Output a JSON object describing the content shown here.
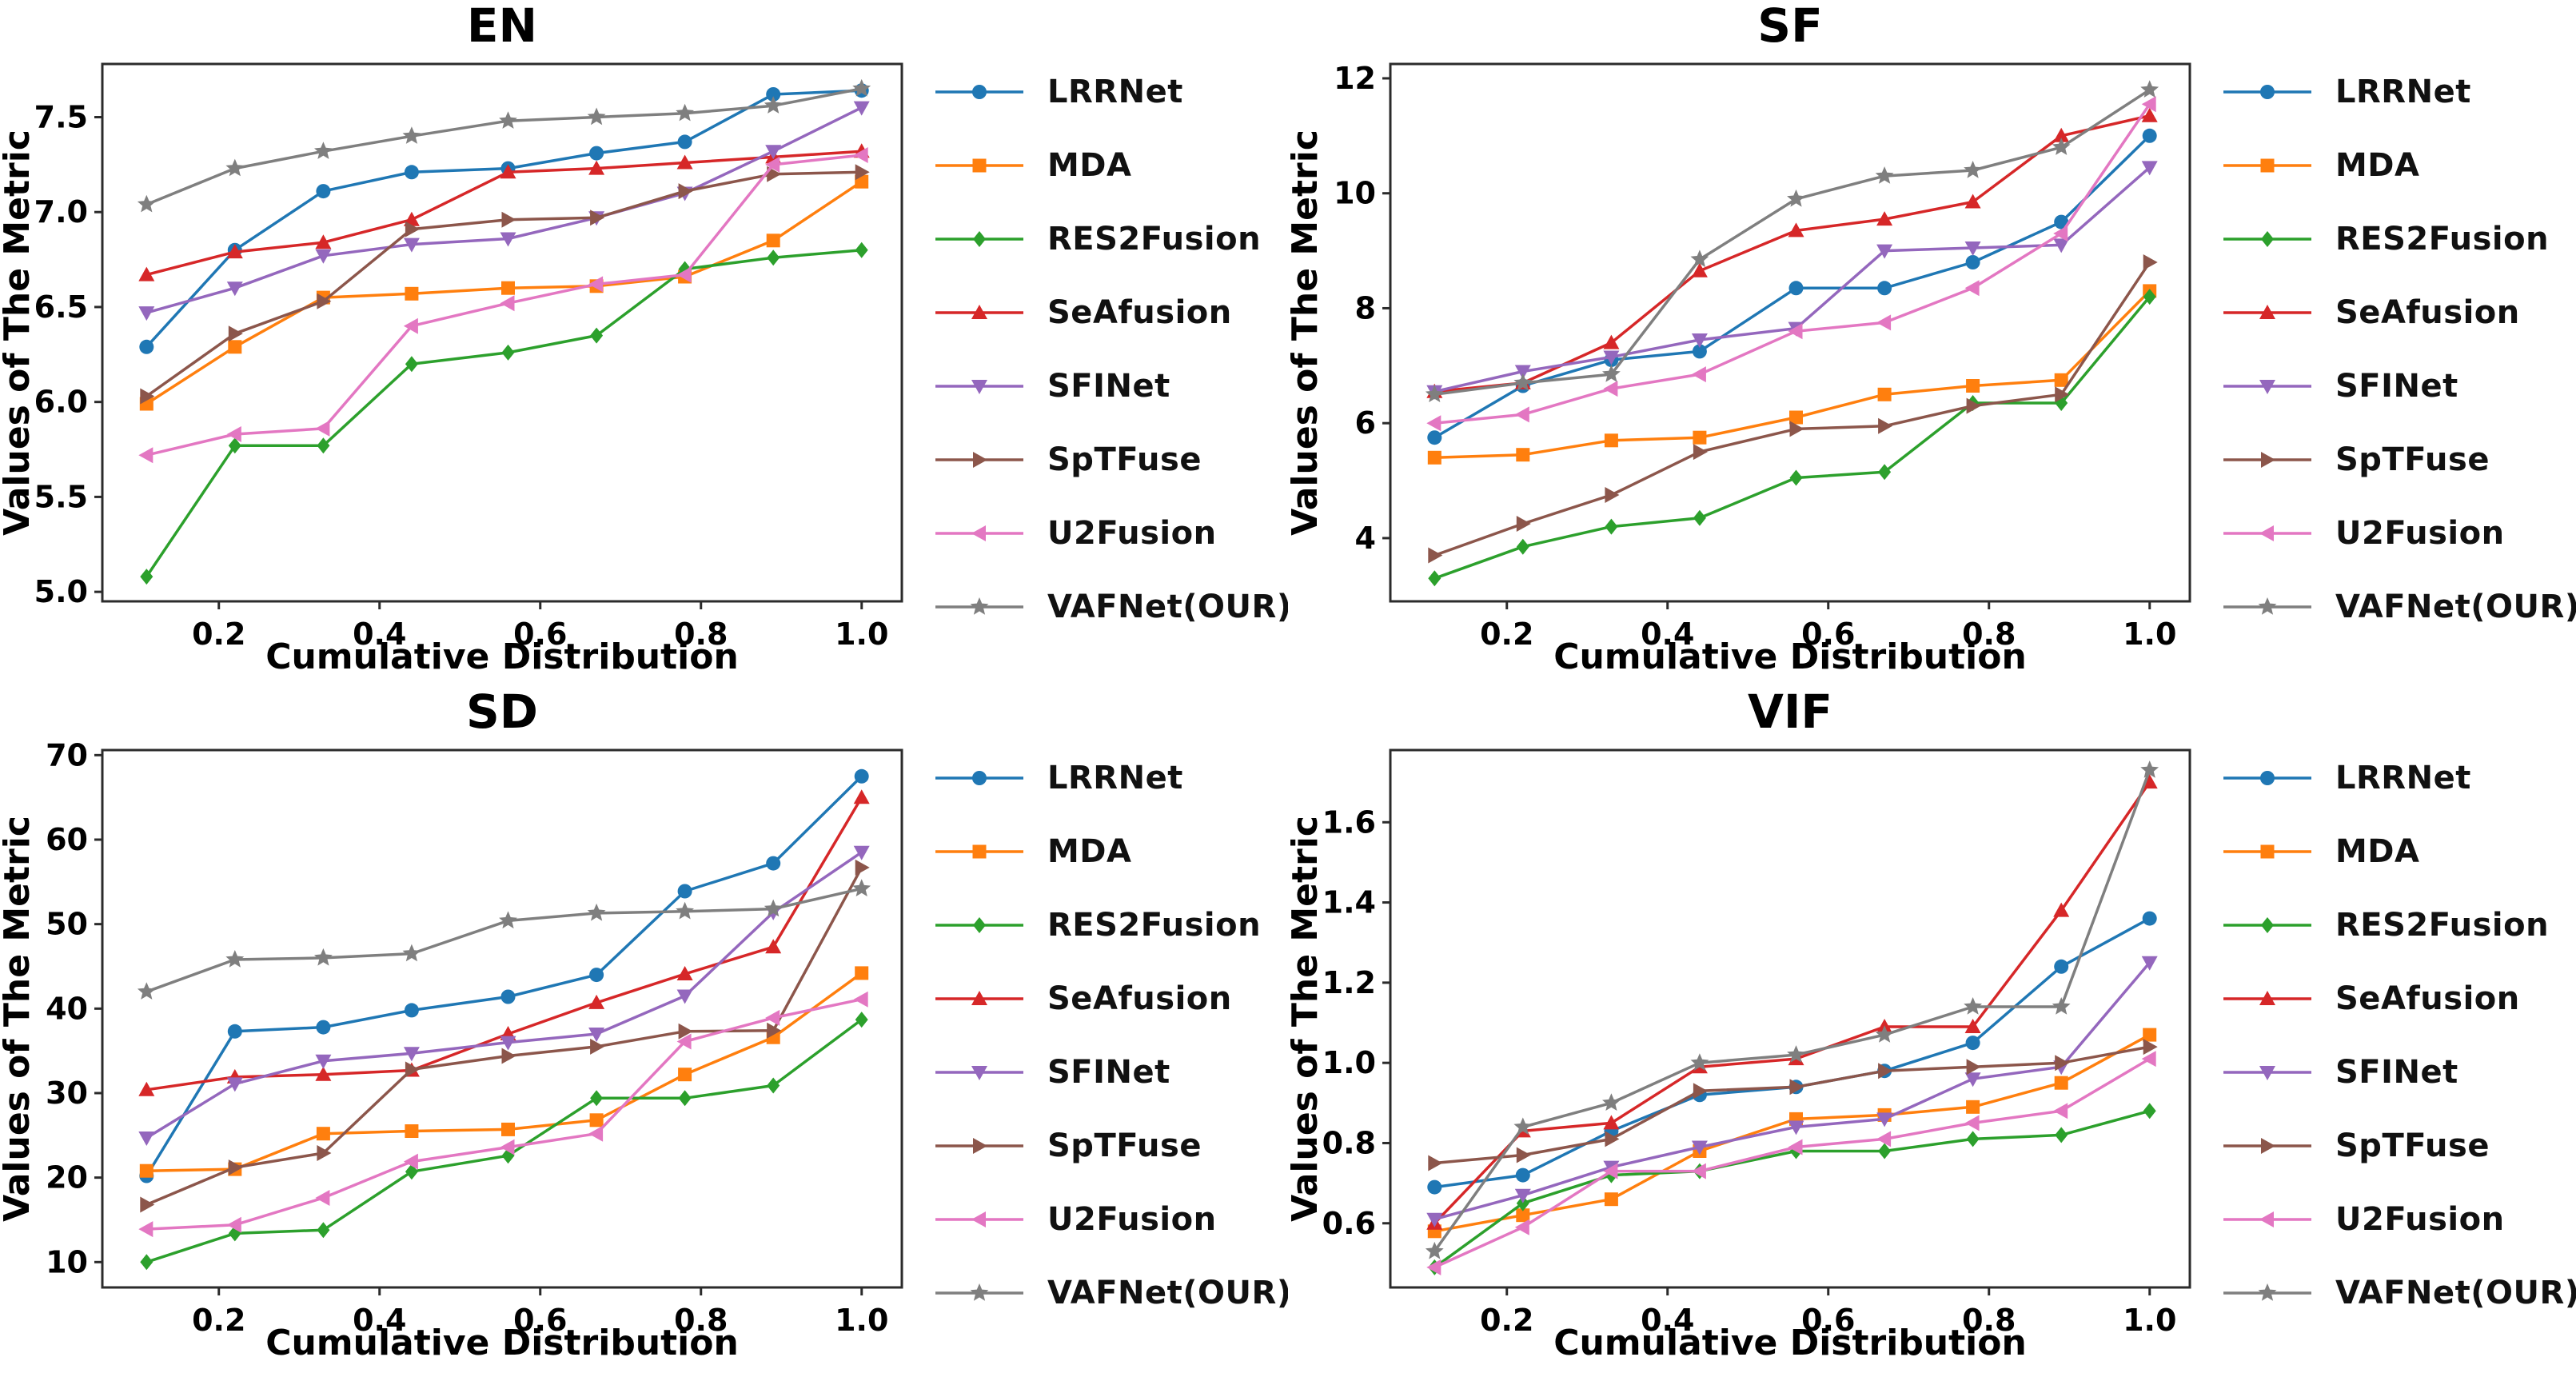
{
  "figure": {
    "xlabel": "Cumulative Distribution",
    "ylabel": "Values of The Metric",
    "spine_color": "#2b2b2b",
    "text_color": "#000000",
    "background": "#ffffff"
  },
  "series_meta": [
    {
      "name": "LRRNet",
      "color": "#1f77b4",
      "marker": "circle"
    },
    {
      "name": "MDA",
      "color": "#ff7f0e",
      "marker": "square"
    },
    {
      "name": "RES2Fusion",
      "color": "#2ca02c",
      "marker": "diamond"
    },
    {
      "name": "SeAfusion",
      "color": "#d62728",
      "marker": "triangle-up"
    },
    {
      "name": "SFINet",
      "color": "#9467bd",
      "marker": "triangle-down"
    },
    {
      "name": "SpTFuse",
      "color": "#8c564b",
      "marker": "triangle-right"
    },
    {
      "name": "U2Fusion",
      "color": "#e377c2",
      "marker": "triangle-left"
    },
    {
      "name": "VAFNet(OUR)",
      "color": "#7f7f7f",
      "marker": "star"
    }
  ],
  "chart_data": [
    {
      "type": "line",
      "title": "EN",
      "xlabel": "Cumulative Distribution",
      "ylabel": "Values of The Metric",
      "x": [
        0.11,
        0.22,
        0.33,
        0.44,
        0.56,
        0.67,
        0.78,
        0.89,
        1.0
      ],
      "xlim": [
        0.055,
        1.05
      ],
      "xticks": [
        0.2,
        0.4,
        0.6,
        0.8,
        1.0
      ],
      "xtick_labels": [
        "0.2",
        "0.4",
        "0.6",
        "0.8",
        "1.0"
      ],
      "ylim": [
        4.95,
        7.78
      ],
      "yticks": [
        5.0,
        5.5,
        6.0,
        6.5,
        7.0,
        7.5
      ],
      "ytick_labels": [
        "5.0",
        "5.5",
        "6.0",
        "6.5",
        "7.0",
        "7.5"
      ],
      "legend_position": "right",
      "grid": false,
      "series": [
        {
          "name": "LRRNet",
          "values": [
            6.29,
            6.8,
            7.11,
            7.21,
            7.23,
            7.31,
            7.37,
            7.62,
            7.64
          ]
        },
        {
          "name": "MDA",
          "values": [
            5.99,
            6.29,
            6.55,
            6.57,
            6.6,
            6.61,
            6.66,
            6.85,
            7.16
          ]
        },
        {
          "name": "RES2Fusion",
          "values": [
            5.08,
            5.77,
            5.77,
            6.2,
            6.26,
            6.35,
            6.7,
            6.76,
            6.8
          ]
        },
        {
          "name": "SeAfusion",
          "values": [
            6.67,
            6.79,
            6.84,
            6.96,
            7.21,
            7.23,
            7.26,
            7.29,
            7.32
          ]
        },
        {
          "name": "SFINet",
          "values": [
            6.47,
            6.6,
            6.77,
            6.83,
            6.86,
            6.97,
            7.1,
            7.32,
            7.55
          ]
        },
        {
          "name": "SpTFuse",
          "values": [
            6.03,
            6.36,
            6.53,
            6.91,
            6.96,
            6.97,
            7.11,
            7.2,
            7.21
          ]
        },
        {
          "name": "U2Fusion",
          "values": [
            5.72,
            5.83,
            5.86,
            6.4,
            6.52,
            6.62,
            6.67,
            7.25,
            7.3
          ]
        },
        {
          "name": "VAFNet(OUR)",
          "values": [
            7.04,
            7.23,
            7.32,
            7.4,
            7.48,
            7.5,
            7.52,
            7.56,
            7.65
          ]
        }
      ]
    },
    {
      "type": "line",
      "title": "SF",
      "xlabel": "Cumulative Distribution",
      "ylabel": "Values of The Metric",
      "x": [
        0.11,
        0.22,
        0.33,
        0.44,
        0.56,
        0.67,
        0.78,
        0.89,
        1.0
      ],
      "xlim": [
        0.055,
        1.05
      ],
      "xticks": [
        0.2,
        0.4,
        0.6,
        0.8,
        1.0
      ],
      "xtick_labels": [
        "0.2",
        "0.4",
        "0.6",
        "0.8",
        "1.0"
      ],
      "ylim": [
        2.9,
        12.25
      ],
      "yticks": [
        4,
        6,
        8,
        10,
        12
      ],
      "ytick_labels": [
        "4",
        "6",
        "8",
        "10",
        "12"
      ],
      "legend_position": "right",
      "grid": false,
      "series": [
        {
          "name": "LRRNet",
          "values": [
            5.75,
            6.65,
            7.1,
            7.25,
            8.35,
            8.35,
            8.8,
            9.5,
            11.0
          ]
        },
        {
          "name": "MDA",
          "values": [
            5.4,
            5.45,
            5.7,
            5.75,
            6.1,
            6.5,
            6.65,
            6.75,
            8.3
          ]
        },
        {
          "name": "RES2Fusion",
          "values": [
            3.3,
            3.85,
            4.2,
            4.35,
            5.05,
            5.15,
            6.35,
            6.35,
            8.2
          ]
        },
        {
          "name": "SeAfusion",
          "values": [
            6.55,
            6.7,
            7.4,
            8.65,
            9.35,
            9.55,
            9.85,
            11.0,
            11.35
          ]
        },
        {
          "name": "SFINet",
          "values": [
            6.55,
            6.9,
            7.15,
            7.45,
            7.65,
            9.0,
            9.05,
            9.1,
            10.45
          ]
        },
        {
          "name": "SpTFuse",
          "values": [
            3.7,
            4.25,
            4.75,
            5.5,
            5.9,
            5.95,
            6.3,
            6.5,
            8.8
          ]
        },
        {
          "name": "U2Fusion",
          "values": [
            6.0,
            6.15,
            6.6,
            6.85,
            7.6,
            7.75,
            8.35,
            9.3,
            11.55
          ]
        },
        {
          "name": "VAFNet(OUR)",
          "values": [
            6.5,
            6.7,
            6.85,
            8.85,
            9.9,
            10.3,
            10.4,
            10.8,
            11.8
          ]
        }
      ]
    },
    {
      "type": "line",
      "title": "SD",
      "xlabel": "Cumulative Distribution",
      "ylabel": "Values of The Metric",
      "x": [
        0.11,
        0.22,
        0.33,
        0.44,
        0.56,
        0.67,
        0.78,
        0.89,
        1.0
      ],
      "xlim": [
        0.055,
        1.05
      ],
      "xticks": [
        0.2,
        0.4,
        0.6,
        0.8,
        1.0
      ],
      "xtick_labels": [
        "0.2",
        "0.4",
        "0.6",
        "0.8",
        "1.0"
      ],
      "ylim": [
        7.0,
        70.6
      ],
      "yticks": [
        10,
        20,
        30,
        40,
        50,
        60,
        70
      ],
      "ytick_labels": [
        "10",
        "20",
        "30",
        "40",
        "50",
        "60",
        "70"
      ],
      "legend_position": "right",
      "grid": false,
      "series": [
        {
          "name": "LRRNet",
          "values": [
            20.2,
            37.3,
            37.8,
            39.8,
            41.4,
            44.0,
            53.9,
            57.2,
            67.5
          ]
        },
        {
          "name": "MDA",
          "values": [
            20.8,
            21.0,
            25.2,
            25.5,
            25.7,
            26.8,
            32.2,
            36.6,
            44.2
          ]
        },
        {
          "name": "RES2Fusion",
          "values": [
            10.0,
            13.4,
            13.8,
            20.7,
            22.6,
            29.4,
            29.4,
            30.9,
            38.7
          ]
        },
        {
          "name": "SeAfusion",
          "values": [
            30.4,
            31.9,
            32.2,
            32.7,
            37.0,
            40.7,
            44.1,
            47.3,
            65.0
          ]
        },
        {
          "name": "SFINet",
          "values": [
            24.7,
            31.1,
            33.8,
            34.7,
            36.0,
            37.0,
            41.5,
            51.4,
            58.5
          ]
        },
        {
          "name": "SpTFuse",
          "values": [
            16.8,
            21.2,
            22.9,
            32.8,
            34.4,
            35.5,
            37.3,
            37.4,
            56.7
          ]
        },
        {
          "name": "U2Fusion",
          "values": [
            13.9,
            14.4,
            17.6,
            21.9,
            23.6,
            25.2,
            36.1,
            38.9,
            41.1
          ]
        },
        {
          "name": "VAFNet(OUR)",
          "values": [
            42.0,
            45.8,
            46.0,
            46.5,
            50.4,
            51.3,
            51.5,
            51.8,
            54.2
          ]
        }
      ]
    },
    {
      "type": "line",
      "title": "VIF",
      "xlabel": "Cumulative Distribution",
      "ylabel": "Values of The Metric",
      "x": [
        0.11,
        0.22,
        0.33,
        0.44,
        0.56,
        0.67,
        0.78,
        0.89,
        1.0
      ],
      "xlim": [
        0.055,
        1.05
      ],
      "xticks": [
        0.2,
        0.4,
        0.6,
        0.8,
        1.0
      ],
      "xtick_labels": [
        "0.2",
        "0.4",
        "0.6",
        "0.8",
        "1.0"
      ],
      "ylim": [
        0.44,
        1.78
      ],
      "yticks": [
        0.6,
        0.8,
        1.0,
        1.2,
        1.4,
        1.6
      ],
      "ytick_labels": [
        "0.6",
        "0.8",
        "1.0",
        "1.2",
        "1.4",
        "1.6"
      ],
      "legend_position": "right",
      "grid": false,
      "series": [
        {
          "name": "LRRNet",
          "values": [
            0.69,
            0.72,
            0.83,
            0.92,
            0.94,
            0.98,
            1.05,
            1.24,
            1.36
          ]
        },
        {
          "name": "MDA",
          "values": [
            0.58,
            0.62,
            0.66,
            0.78,
            0.86,
            0.87,
            0.89,
            0.95,
            1.07
          ]
        },
        {
          "name": "RES2Fusion",
          "values": [
            0.49,
            0.65,
            0.72,
            0.73,
            0.78,
            0.78,
            0.81,
            0.82,
            0.88
          ]
        },
        {
          "name": "SeAfusion",
          "values": [
            0.6,
            0.83,
            0.85,
            0.99,
            1.01,
            1.09,
            1.09,
            1.38,
            1.7
          ]
        },
        {
          "name": "SFINet",
          "values": [
            0.61,
            0.67,
            0.74,
            0.79,
            0.84,
            0.86,
            0.96,
            0.99,
            1.25
          ]
        },
        {
          "name": "SpTFuse",
          "values": [
            0.75,
            0.77,
            0.81,
            0.93,
            0.94,
            0.98,
            0.99,
            1.0,
            1.04
          ]
        },
        {
          "name": "U2Fusion",
          "values": [
            0.49,
            0.59,
            0.73,
            0.73,
            0.79,
            0.81,
            0.85,
            0.88,
            1.01
          ]
        },
        {
          "name": "VAFNet(OUR)",
          "values": [
            0.53,
            0.84,
            0.9,
            1.0,
            1.02,
            1.07,
            1.14,
            1.14,
            1.73
          ]
        }
      ]
    }
  ]
}
